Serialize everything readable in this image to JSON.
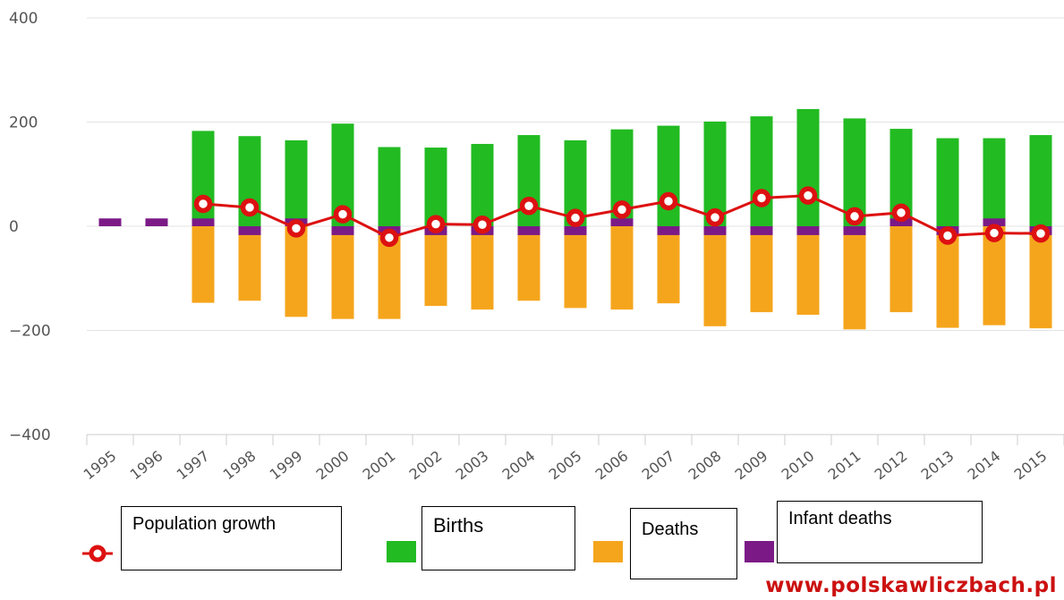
{
  "chart_data": {
    "type": "bar",
    "categories": [
      "1995",
      "1996",
      "1997",
      "1998",
      "1999",
      "2000",
      "2001",
      "2002",
      "2003",
      "2004",
      "2005",
      "2006",
      "2007",
      "2008",
      "2009",
      "2010",
      "2011",
      "2012",
      "2013",
      "2014",
      "2015"
    ],
    "yticks": [
      "400",
      "200",
      "0",
      "-200",
      "-400"
    ],
    "ylim": [
      -400,
      400
    ],
    "grid": true,
    "series": [
      {
        "name": "Births",
        "kind": "bar",
        "color": "#22bb22",
        "values": [
          null,
          null,
          183,
          173,
          165,
          197,
          152,
          151,
          158,
          175,
          165,
          186,
          193,
          201,
          211,
          225,
          207,
          187,
          169,
          169,
          175
        ]
      },
      {
        "name": "Deaths",
        "kind": "bar",
        "color": "#f5a51c",
        "values": [
          null,
          null,
          -147,
          -143,
          -174,
          -178,
          -178,
          -153,
          -160,
          -143,
          -157,
          -160,
          -148,
          -192,
          -165,
          -170,
          -198,
          -165,
          -195,
          -190,
          -196
        ]
      },
      {
        "name": "Infant deaths",
        "kind": "bar",
        "color": "#7b1a86",
        "values": [
          15,
          15,
          15,
          -17,
          15,
          -17,
          -17,
          -17,
          -17,
          -17,
          -17,
          15,
          -17,
          -17,
          -17,
          -17,
          -17,
          15,
          -17,
          15,
          -17
        ]
      },
      {
        "name": "Population growth",
        "kind": "line",
        "color": "#dd1111",
        "values": [
          null,
          null,
          43,
          36,
          -4,
          23,
          -22,
          4,
          3,
          39,
          16,
          32,
          48,
          17,
          54,
          59,
          19,
          26,
          -18,
          -13,
          -14
        ]
      }
    ]
  },
  "legend": {
    "population_growth": "Population growth",
    "births": "Births",
    "deaths": "Deaths",
    "infant_deaths": "Infant deaths"
  },
  "watermark": {
    "text": "www.polskawliczbach.pl",
    "color": "#cc1111"
  }
}
